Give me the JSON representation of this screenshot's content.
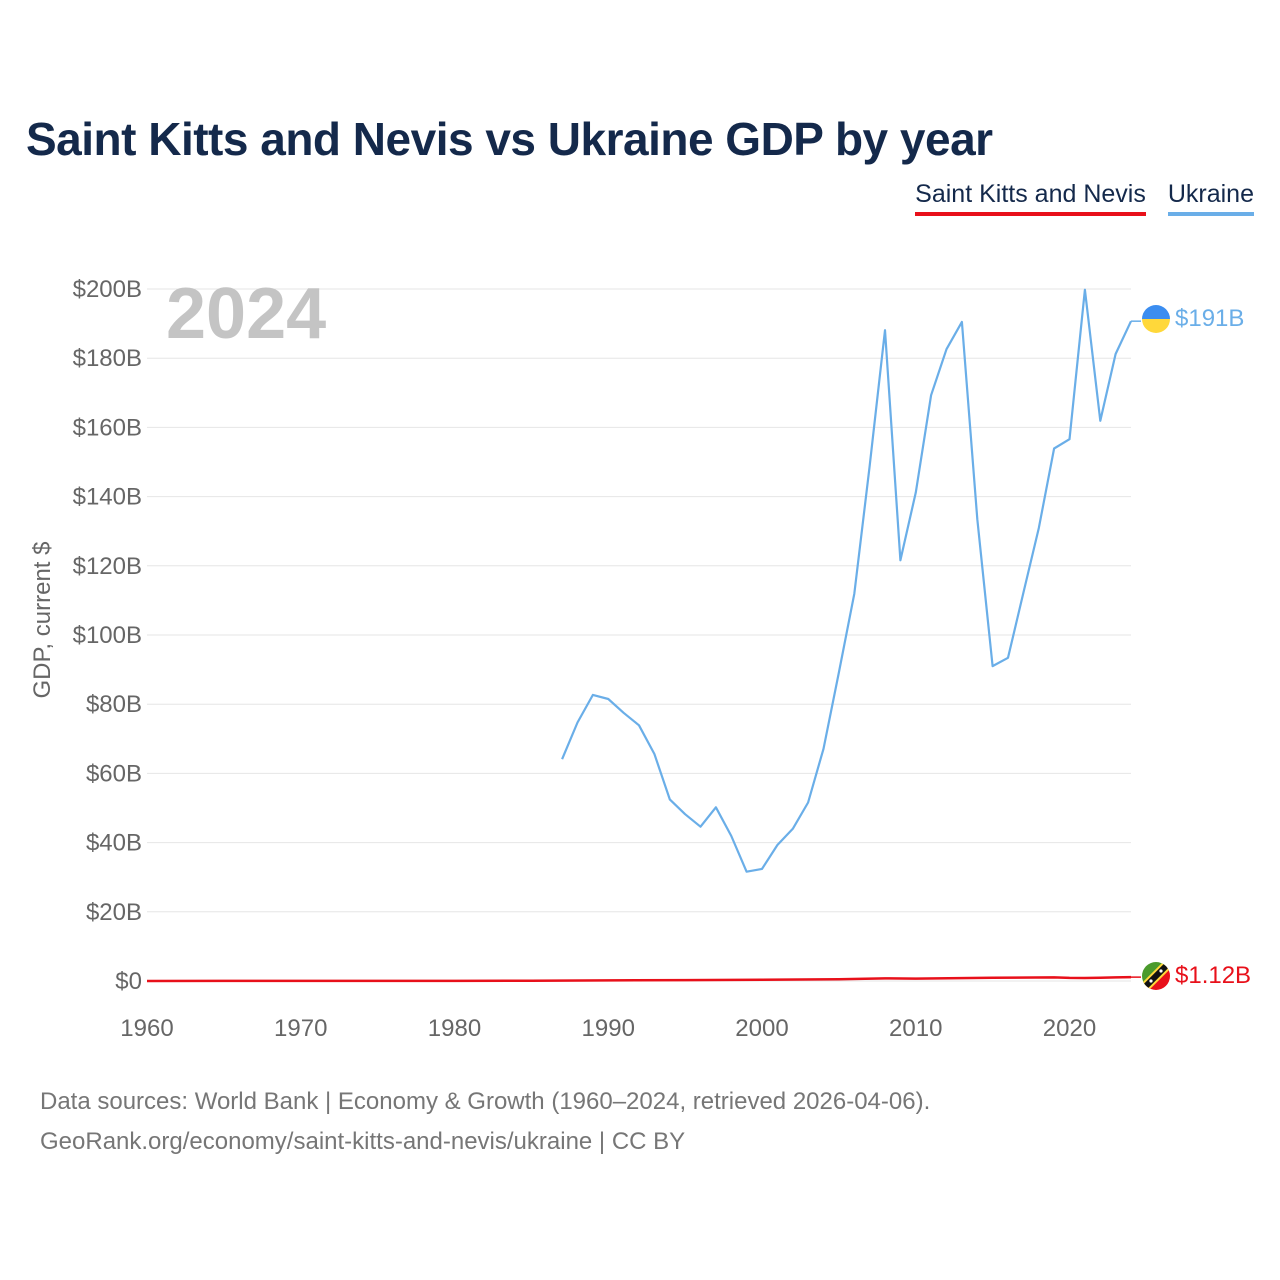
{
  "chart_data": {
    "type": "line",
    "title": "Saint Kitts and Nevis vs Ukraine GDP by year",
    "ylabel": "GDP, current $",
    "xlabel": "",
    "year_watermark": "2024",
    "xlim": [
      1960,
      2024
    ],
    "ylim": [
      0,
      200
    ],
    "y_unit": "billions USD",
    "grid": true,
    "x_ticks": [
      1960,
      1970,
      1980,
      1990,
      2000,
      2010,
      2020
    ],
    "x_tick_labels": [
      "1960",
      "1970",
      "1980",
      "1990",
      "2000",
      "2010",
      "2020"
    ],
    "y_ticks": [
      0,
      20,
      40,
      60,
      80,
      100,
      120,
      140,
      160,
      180,
      200
    ],
    "y_tick_labels": [
      "$0",
      "$20B",
      "$40B",
      "$60B",
      "$80B",
      "$100B",
      "$120B",
      "$140B",
      "$160B",
      "$180B",
      "$200B"
    ],
    "series": [
      {
        "name": "Saint Kitts and Nevis",
        "color": "#e8101a",
        "end_label": "$1.12B",
        "x": [
          1960,
          1965,
          1970,
          1975,
          1980,
          1985,
          1990,
          1995,
          2000,
          2005,
          2008,
          2010,
          2015,
          2019,
          2020,
          2021,
          2022,
          2023,
          2024
        ],
        "values": [
          0.01,
          0.02,
          0.02,
          0.03,
          0.04,
          0.08,
          0.16,
          0.26,
          0.35,
          0.48,
          0.75,
          0.69,
          0.92,
          1.05,
          0.9,
          0.86,
          0.95,
          1.05,
          1.12
        ]
      },
      {
        "name": "Ukraine",
        "color": "#6aaee8",
        "end_label": "$191B",
        "x": [
          1987,
          1988,
          1989,
          1990,
          1991,
          1992,
          1993,
          1994,
          1995,
          1996,
          1997,
          1998,
          1999,
          2000,
          2001,
          2002,
          2003,
          2004,
          2005,
          2006,
          2007,
          2008,
          2009,
          2010,
          2011,
          2012,
          2013,
          2014,
          2015,
          2016,
          2017,
          2018,
          2019,
          2020,
          2021,
          2022,
          2023,
          2024
        ],
        "values": [
          64.1,
          74.7,
          82.7,
          81.5,
          77.5,
          73.9,
          65.6,
          52.5,
          48.2,
          44.6,
          50.2,
          41.9,
          31.6,
          32.4,
          39.3,
          44.0,
          51.6,
          67.1,
          89.2,
          111.9,
          148.7,
          188.1,
          121.6,
          141.2,
          169.3,
          182.6,
          190.5,
          133.5,
          91.0,
          93.4,
          112.2,
          130.9,
          153.9,
          156.6,
          199.8,
          161.9,
          181.2,
          190.7
        ]
      }
    ]
  },
  "legend": {
    "saint_kitts_label": "Saint Kitts and Nevis",
    "ukraine_label": "Ukraine"
  },
  "sources": {
    "line1": "Data sources: World Bank | Economy & Growth (1960–2024, retrieved 2026-04-06).",
    "line2": "GeoRank.org/economy/saint-kitts-and-nevis/ukraine | CC BY"
  },
  "colors": {
    "title": "#14294b",
    "axis_text": "#666666",
    "grid": "#e6e6e6",
    "watermark": "#c4c4c4"
  }
}
